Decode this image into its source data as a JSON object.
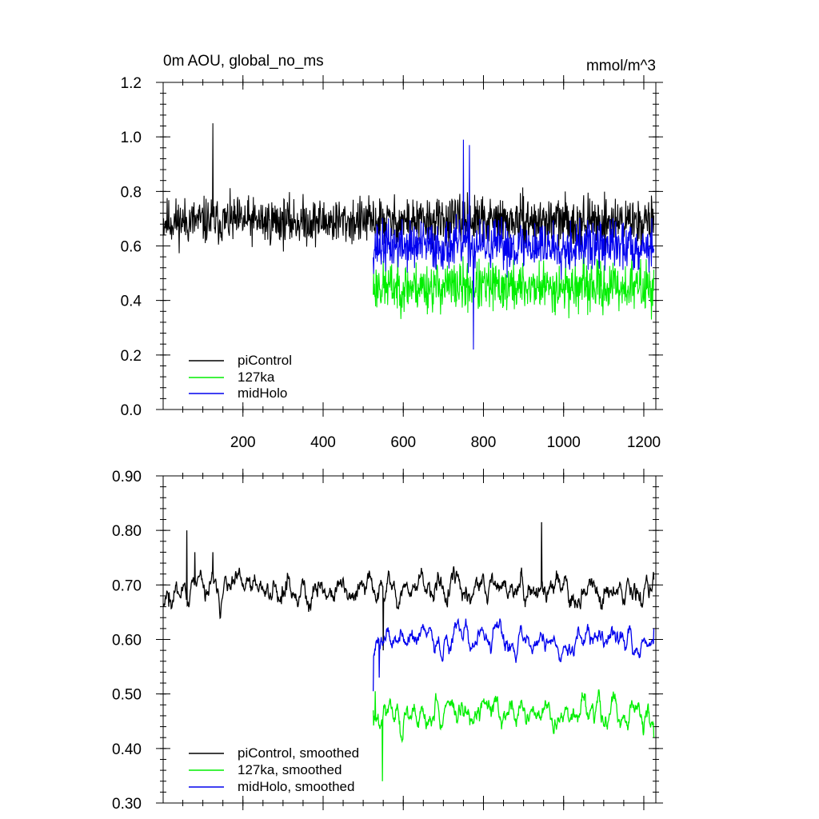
{
  "chart_data": [
    {
      "type": "line",
      "title": "0m AOU, global_no_ms",
      "units_label": "mmol/m^3",
      "xlim": [
        1,
        1230
      ],
      "ylim": [
        0.0,
        1.2
      ],
      "x_ticks": [
        200,
        400,
        600,
        800,
        1000,
        1200
      ],
      "x_tick_labels": [
        "200",
        "400",
        "600",
        "800",
        "1000",
        "1200"
      ],
      "y_ticks": [
        0.0,
        0.2,
        0.4,
        0.6,
        0.8,
        1.0,
        1.2
      ],
      "y_tick_labels": [
        "0.0",
        "0.2",
        "0.4",
        "0.6",
        "0.8",
        "1.0",
        "1.2"
      ],
      "legend_position": "bottom-left",
      "series": [
        {
          "name": "piControl",
          "label": "piControl",
          "color": "#000000",
          "x_start": 1,
          "x_end": 1225,
          "mean": 0.69,
          "spread": 0.08,
          "seed": 11,
          "smoothing": 0,
          "peaks": [
            [
              125,
              1.05
            ]
          ]
        },
        {
          "name": "127ka",
          "label": "127ka",
          "color": "#00ee00",
          "x_start": 525,
          "x_end": 1225,
          "mean": 0.45,
          "spread": 0.085,
          "seed": 23,
          "smoothing": 0,
          "peaks": [
            [
              540,
              0.47
            ]
          ]
        },
        {
          "name": "midHolo",
          "label": "midHolo",
          "color": "#0000ee",
          "x_start": 525,
          "x_end": 1225,
          "mean": 0.6,
          "spread": 0.085,
          "seed": 37,
          "smoothing": 0,
          "peaks": [
            [
              750,
              0.99
            ],
            [
              765,
              0.97
            ],
            [
              775,
              0.22
            ]
          ]
        }
      ]
    },
    {
      "type": "line",
      "title": "",
      "xlim": [
        1,
        1230
      ],
      "ylim": [
        0.3,
        0.9
      ],
      "x_ticks": [
        200,
        400,
        600,
        800,
        1000,
        1200
      ],
      "y_ticks": [
        0.3,
        0.4,
        0.5,
        0.6,
        0.7,
        0.8,
        0.9
      ],
      "y_tick_labels": [
        "0.30",
        "0.40",
        "0.50",
        "0.60",
        "0.70",
        "0.80",
        "0.90"
      ],
      "legend_position": "bottom-left",
      "series": [
        {
          "name": "piControl, smoothed",
          "label": "piControl, smoothed",
          "color": "#000000",
          "x_start": 1,
          "x_end": 1225,
          "mean": 0.69,
          "spread": 0.045,
          "seed": 11,
          "smoothing": 5,
          "peaks": [
            [
              15,
              0.66
            ],
            [
              60,
              0.8
            ],
            [
              80,
              0.76
            ],
            [
              125,
              0.76
            ],
            [
              550,
              0.58
            ],
            [
              945,
              0.815
            ]
          ]
        },
        {
          "name": "127ka, smoothed",
          "label": "127ka, smoothed",
          "color": "#00ee00",
          "x_start": 525,
          "x_end": 1225,
          "mean": 0.465,
          "spread": 0.045,
          "seed": 23,
          "smoothing": 5,
          "peaks": [
            [
              525,
              0.47
            ],
            [
              530,
              0.505
            ],
            [
              548,
              0.34
            ],
            [
              1225,
              0.42
            ]
          ]
        },
        {
          "name": "midHolo, smoothed",
          "label": "midHolo, smoothed",
          "color": "#0000ee",
          "x_start": 525,
          "x_end": 1225,
          "mean": 0.6,
          "spread": 0.04,
          "seed": 37,
          "smoothing": 5,
          "peaks": [
            [
              525,
              0.505
            ],
            [
              540,
              0.53
            ],
            [
              1225,
              0.62
            ]
          ]
        }
      ]
    }
  ]
}
